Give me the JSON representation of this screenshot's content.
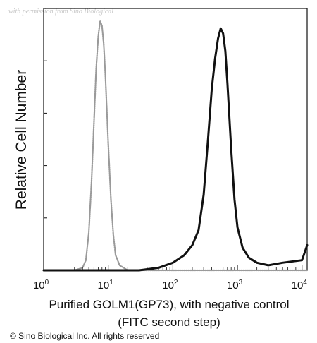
{
  "watermark": "with permission from Sino Biological",
  "copyright": "© Sino Biological Inc. All rights reserved",
  "chart_data": {
    "type": "line",
    "title": "",
    "xlabel_lines": [
      "Purified GOLM1(GP73), with negative control",
      "(FITC second step)"
    ],
    "ylabel": "Relative Cell Number",
    "x_scale": "log",
    "xlim": [
      1,
      12000
    ],
    "ylim": [
      0,
      1
    ],
    "x_ticks": [
      {
        "value": 1,
        "base": "10",
        "exp": "0"
      },
      {
        "value": 10,
        "base": "10",
        "exp": "1"
      },
      {
        "value": 100,
        "base": "10",
        "exp": "2"
      },
      {
        "value": 1000,
        "base": "10",
        "exp": "3"
      },
      {
        "value": 10000,
        "base": "10",
        "exp": "4"
      }
    ],
    "y_tick_count": 5,
    "grid": false,
    "series": [
      {
        "style": "dotted",
        "color": "#9a9a9a",
        "x": [
          1,
          3,
          4,
          4.5,
          5,
          5.5,
          6,
          6.5,
          7,
          7.5,
          8,
          8.5,
          9,
          10,
          11,
          12,
          13,
          15,
          20,
          100,
          1000,
          12000
        ],
        "y": [
          0,
          0,
          0.01,
          0.04,
          0.15,
          0.35,
          0.58,
          0.8,
          0.93,
          0.99,
          0.97,
          0.9,
          0.78,
          0.5,
          0.28,
          0.14,
          0.06,
          0.02,
          0,
          0,
          0,
          0
        ]
      },
      {
        "style": "solid",
        "color": "#111111",
        "x": [
          1,
          30,
          60,
          100,
          150,
          200,
          250,
          300,
          350,
          400,
          450,
          500,
          550,
          600,
          650,
          700,
          800,
          900,
          1000,
          1200,
          1500,
          2000,
          3000,
          5000,
          10000,
          12000
        ],
        "y": [
          0,
          0,
          0.01,
          0.03,
          0.06,
          0.1,
          0.16,
          0.3,
          0.52,
          0.72,
          0.84,
          0.92,
          0.96,
          0.94,
          0.87,
          0.74,
          0.48,
          0.28,
          0.17,
          0.09,
          0.05,
          0.03,
          0.02,
          0.03,
          0.04,
          0.1
        ]
      }
    ]
  }
}
